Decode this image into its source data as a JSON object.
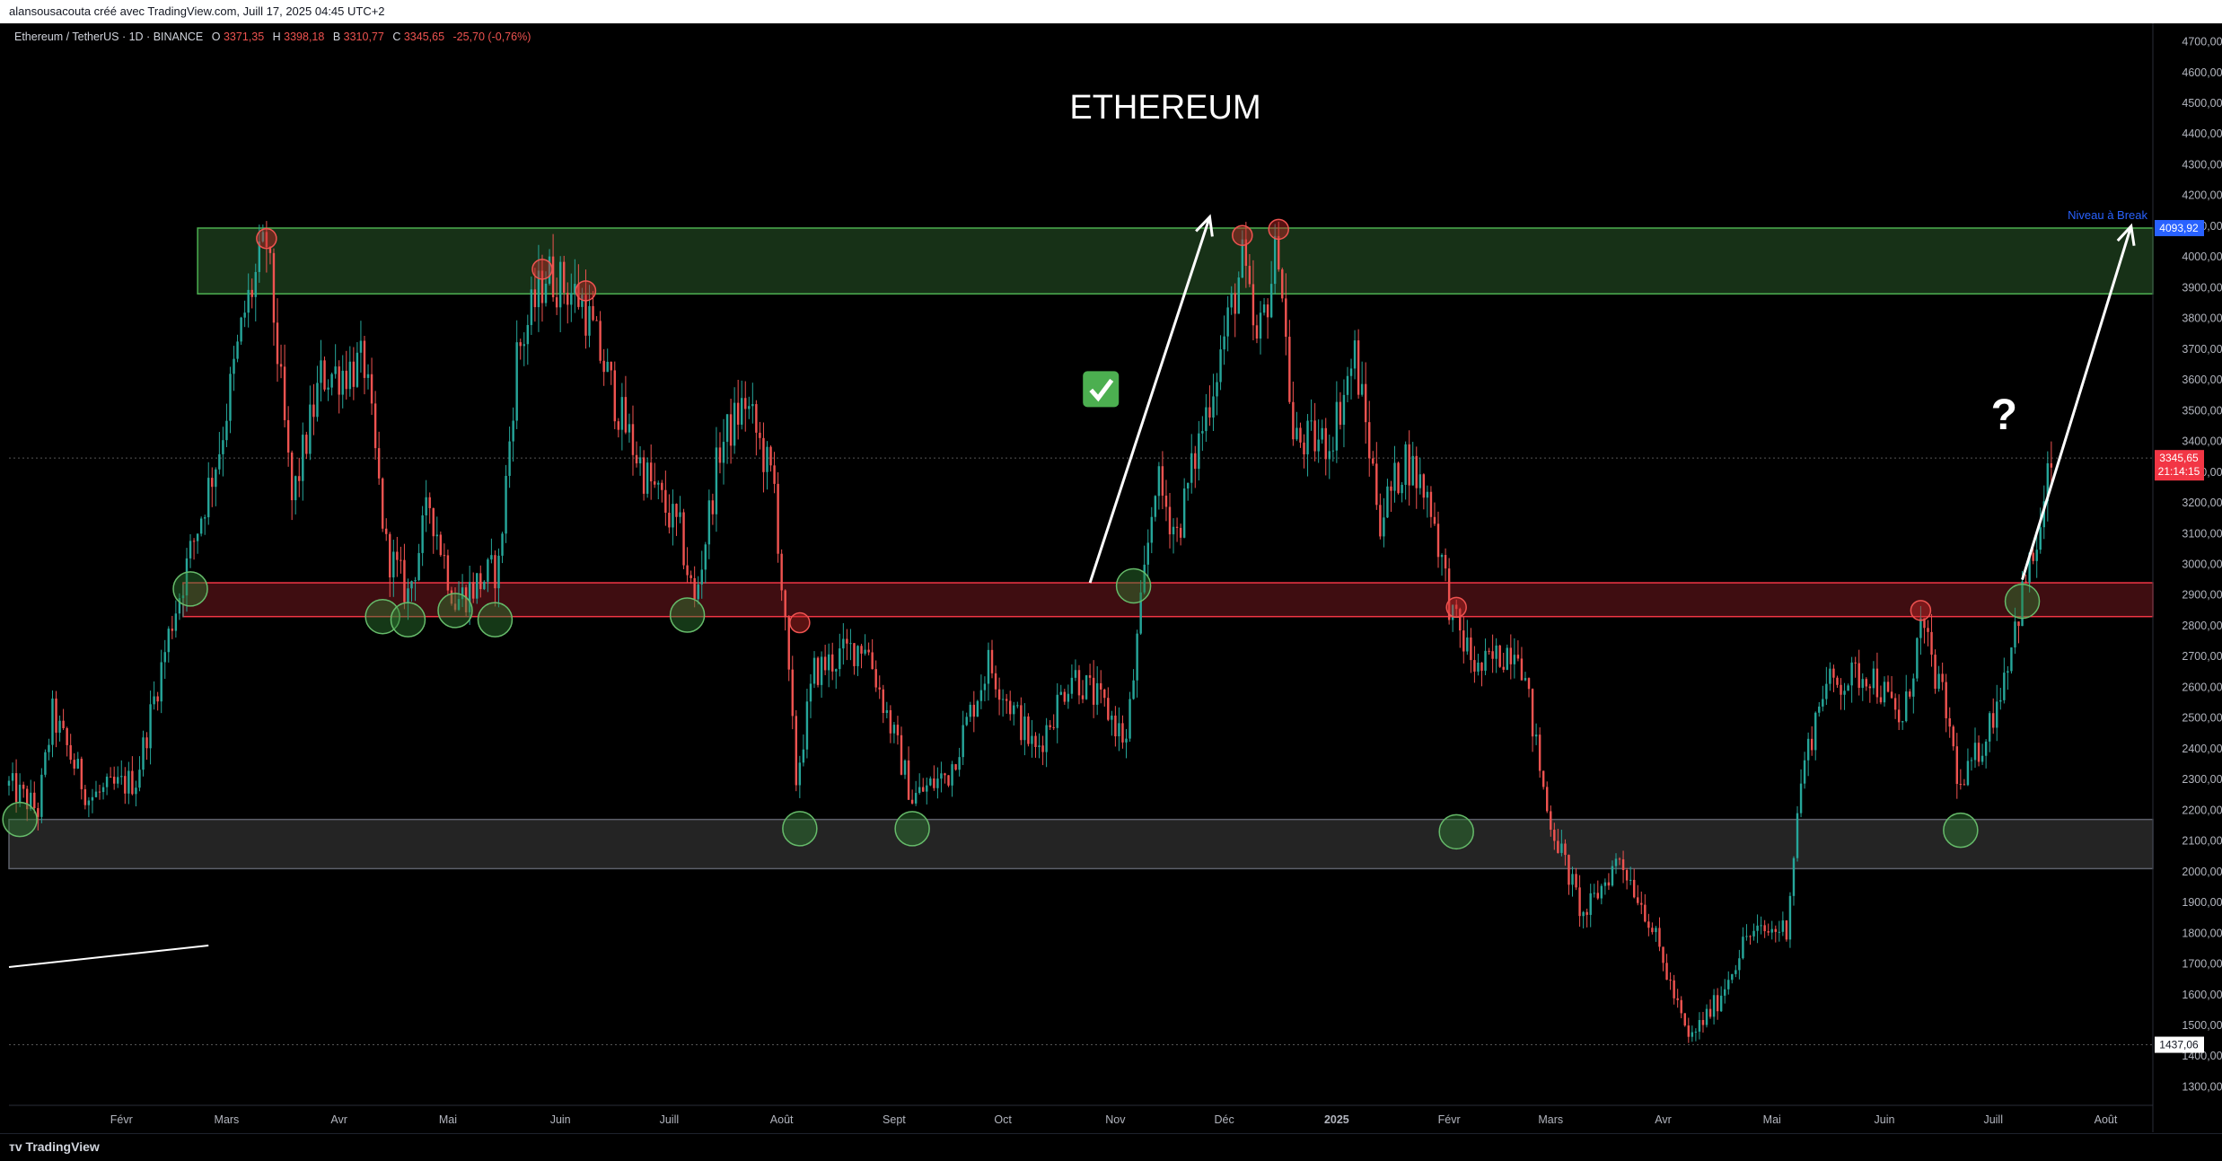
{
  "header": {
    "credit": "alansousacouta créé avec TradingView.com, Juill 17, 2025 04:45 UTC+2"
  },
  "legend": {
    "symbol": "Ethereum / TetherUS · 1D · BINANCE",
    "o_label": "O",
    "o_value": "3371,35",
    "h_label": "H",
    "h_value": "3398,18",
    "l_label": "B",
    "l_value": "3310,77",
    "c_label": "C",
    "c_value": "3345,65",
    "change": "-25,70 (-0,76%)"
  },
  "footer": {
    "logo_text": "TradingView"
  },
  "colors": {
    "up": "#26a69a",
    "down": "#ef5350",
    "resistance_zone": "#1b3a1b",
    "support_red": "#4a0f14",
    "grey_zone": "#2a2a2a",
    "last_price": "#f23645",
    "level": "#2962ff"
  },
  "chart_data": {
    "type": "candlestick",
    "title": "ETHEREUM",
    "ylim": [
      1240,
      4760
    ],
    "y_ticks": [
      "4700,00",
      "4600,00",
      "4500,00",
      "4400,00",
      "4300,00",
      "4200,00",
      "4100,00",
      "4000,00",
      "3900,00",
      "3800,00",
      "3700,00",
      "3600,00",
      "3500,00",
      "3400,00",
      "3300,00",
      "3200,00",
      "3100,00",
      "3000,00",
      "2900,00",
      "2800,00",
      "2700,00",
      "2600,00",
      "2500,00",
      "2400,00",
      "2300,00",
      "2200,00",
      "2100,00",
      "2000,00",
      "1900,00",
      "1800,00",
      "1700,00",
      "1600,00",
      "1500,00",
      "1400,00",
      "1300,00"
    ],
    "x_ticks": [
      {
        "label": "Févr",
        "date": "2024-02-01"
      },
      {
        "label": "Mars",
        "date": "2024-03-01"
      },
      {
        "label": "Avr",
        "date": "2024-04-01"
      },
      {
        "label": "Mai",
        "date": "2024-05-01"
      },
      {
        "label": "Juin",
        "date": "2024-06-01"
      },
      {
        "label": "Juill",
        "date": "2024-07-01"
      },
      {
        "label": "Août",
        "date": "2024-08-01"
      },
      {
        "label": "Sept",
        "date": "2024-09-01"
      },
      {
        "label": "Oct",
        "date": "2024-10-01"
      },
      {
        "label": "Nov",
        "date": "2024-11-01"
      },
      {
        "label": "Déc",
        "date": "2024-12-01"
      },
      {
        "label": "2025",
        "date": "2025-01-01"
      },
      {
        "label": "Févr",
        "date": "2025-02-01"
      },
      {
        "label": "Mars",
        "date": "2025-03-01"
      },
      {
        "label": "Avr",
        "date": "2025-04-01"
      },
      {
        "label": "Mai",
        "date": "2025-05-01"
      },
      {
        "label": "Juin",
        "date": "2025-06-01"
      },
      {
        "label": "Juill",
        "date": "2025-07-01"
      },
      {
        "label": "Août",
        "date": "2025-08-01"
      }
    ],
    "price_path": [
      {
        "date": "2024-01-01",
        "price": 2280
      },
      {
        "date": "2024-01-09",
        "price": 2200
      },
      {
        "date": "2024-01-13",
        "price": 2510
      },
      {
        "date": "2024-01-23",
        "price": 2240
      },
      {
        "date": "2024-02-05",
        "price": 2300
      },
      {
        "date": "2024-02-15",
        "price": 2820
      },
      {
        "date": "2024-02-28",
        "price": 3380
      },
      {
        "date": "2024-03-06",
        "price": 3820
      },
      {
        "date": "2024-03-12",
        "price": 4050
      },
      {
        "date": "2024-03-19",
        "price": 3200
      },
      {
        "date": "2024-03-27",
        "price": 3610
      },
      {
        "date": "2024-04-08",
        "price": 3650
      },
      {
        "date": "2024-04-14",
        "price": 3050
      },
      {
        "date": "2024-04-20",
        "price": 2900
      },
      {
        "date": "2024-04-26",
        "price": 3200
      },
      {
        "date": "2024-05-03",
        "price": 2880
      },
      {
        "date": "2024-05-15",
        "price": 2990
      },
      {
        "date": "2024-05-20",
        "price": 3680
      },
      {
        "date": "2024-05-28",
        "price": 3950
      },
      {
        "date": "2024-06-07",
        "price": 3860
      },
      {
        "date": "2024-06-18",
        "price": 3470
      },
      {
        "date": "2024-06-24",
        "price": 3300
      },
      {
        "date": "2024-07-04",
        "price": 3100
      },
      {
        "date": "2024-07-08",
        "price": 2870
      },
      {
        "date": "2024-07-15",
        "price": 3380
      },
      {
        "date": "2024-07-22",
        "price": 3530
      },
      {
        "date": "2024-07-30",
        "price": 3250
      },
      {
        "date": "2024-08-05",
        "price": 2300
      },
      {
        "date": "2024-08-10",
        "price": 2650
      },
      {
        "date": "2024-08-24",
        "price": 2750
      },
      {
        "date": "2024-09-06",
        "price": 2240
      },
      {
        "date": "2024-09-16",
        "price": 2320
      },
      {
        "date": "2024-09-27",
        "price": 2680
      },
      {
        "date": "2024-10-10",
        "price": 2390
      },
      {
        "date": "2024-10-20",
        "price": 2650
      },
      {
        "date": "2024-10-30",
        "price": 2520
      },
      {
        "date": "2024-11-04",
        "price": 2420
      },
      {
        "date": "2024-11-12",
        "price": 3280
      },
      {
        "date": "2024-11-18",
        "price": 3100
      },
      {
        "date": "2024-11-24",
        "price": 3400
      },
      {
        "date": "2024-12-06",
        "price": 3980
      },
      {
        "date": "2024-12-10",
        "price": 3700
      },
      {
        "date": "2024-12-16",
        "price": 4050
      },
      {
        "date": "2024-12-20",
        "price": 3400
      },
      {
        "date": "2024-12-30",
        "price": 3400
      },
      {
        "date": "2025-01-06",
        "price": 3680
      },
      {
        "date": "2025-01-13",
        "price": 3150
      },
      {
        "date": "2025-01-20",
        "price": 3350
      },
      {
        "date": "2025-01-27",
        "price": 3200
      },
      {
        "date": "2025-02-02",
        "price": 2820
      },
      {
        "date": "2025-02-09",
        "price": 2650
      },
      {
        "date": "2025-02-20",
        "price": 2750
      },
      {
        "date": "2025-02-28",
        "price": 2200
      },
      {
        "date": "2025-03-10",
        "price": 1850
      },
      {
        "date": "2025-03-20",
        "price": 2050
      },
      {
        "date": "2025-03-28",
        "price": 1850
      },
      {
        "date": "2025-04-08",
        "price": 1450
      },
      {
        "date": "2025-04-16",
        "price": 1580
      },
      {
        "date": "2025-04-24",
        "price": 1790
      },
      {
        "date": "2025-05-05",
        "price": 1820
      },
      {
        "date": "2025-05-09",
        "price": 2300
      },
      {
        "date": "2025-05-15",
        "price": 2600
      },
      {
        "date": "2025-05-28",
        "price": 2650
      },
      {
        "date": "2025-06-06",
        "price": 2480
      },
      {
        "date": "2025-06-11",
        "price": 2800
      },
      {
        "date": "2025-06-18",
        "price": 2520
      },
      {
        "date": "2025-06-22",
        "price": 2260
      },
      {
        "date": "2025-06-30",
        "price": 2480
      },
      {
        "date": "2025-07-03",
        "price": 2600
      },
      {
        "date": "2025-07-10",
        "price": 2950
      },
      {
        "date": "2025-07-14",
        "price": 3100
      },
      {
        "date": "2025-07-17",
        "price": 3345.65
      }
    ],
    "zones": [
      {
        "name": "resistance",
        "from": 3880,
        "to": 4094
      },
      {
        "name": "support-red",
        "from": 2830,
        "to": 2940
      },
      {
        "name": "support-grey",
        "from": 2010,
        "to": 2170
      }
    ],
    "levels": [
      {
        "name": "break-level",
        "price": 4093.92
      }
    ],
    "last_price": {
      "value": "3345,65",
      "countdown": "21:14:15"
    },
    "low_marker": {
      "value": "1437,06"
    },
    "break_level_label": "Niveau à Break",
    "break_level_value": "4093,92",
    "annotations": {
      "check": "✅",
      "question": "?"
    },
    "markers": {
      "green": [
        {
          "date": "2024-01-04",
          "price": 2170
        },
        {
          "date": "2024-02-20",
          "price": 2920
        },
        {
          "date": "2024-04-13",
          "price": 2830
        },
        {
          "date": "2024-04-20",
          "price": 2820
        },
        {
          "date": "2024-05-03",
          "price": 2850
        },
        {
          "date": "2024-05-14",
          "price": 2820
        },
        {
          "date": "2024-07-06",
          "price": 2835
        },
        {
          "date": "2024-08-06",
          "price": 2140
        },
        {
          "date": "2024-09-06",
          "price": 2140
        },
        {
          "date": "2024-11-06",
          "price": 2930
        },
        {
          "date": "2025-02-03",
          "price": 2130
        },
        {
          "date": "2025-06-22",
          "price": 2135
        },
        {
          "date": "2025-07-09",
          "price": 2880
        }
      ],
      "red": [
        {
          "date": "2024-03-12",
          "price": 4060
        },
        {
          "date": "2024-05-27",
          "price": 3960
        },
        {
          "date": "2024-06-08",
          "price": 3890
        },
        {
          "date": "2024-08-06",
          "price": 2810
        },
        {
          "date": "2024-12-06",
          "price": 4070
        },
        {
          "date": "2024-12-16",
          "price": 4090
        },
        {
          "date": "2025-02-03",
          "price": 2860
        },
        {
          "date": "2025-06-11",
          "price": 2850
        }
      ]
    }
  }
}
